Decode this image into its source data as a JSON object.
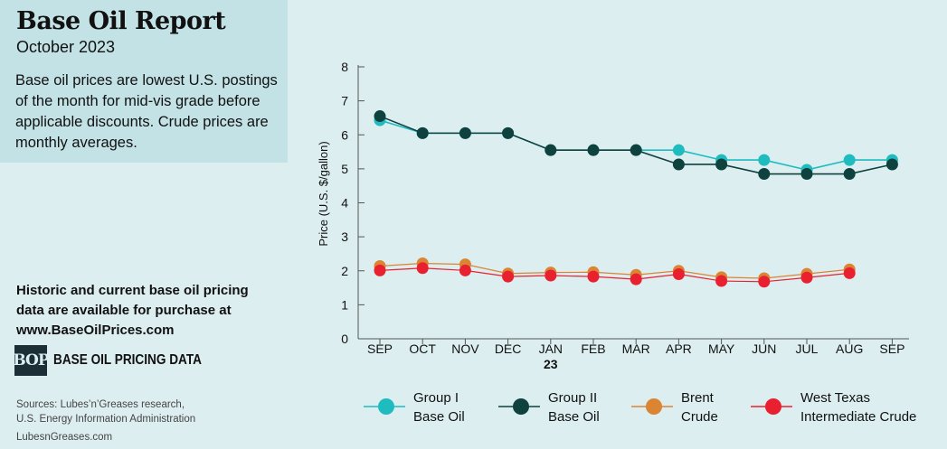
{
  "header": {
    "title": "Base Oil Report",
    "subtitle": "October 2023",
    "description": "Base oil prices are lowest U.S. postings of the month for mid-vis grade before applicable discounts. Crude prices are monthly averages."
  },
  "promo": {
    "text": "Historic and current base oil pricing data are available for purchase at",
    "url": "www.BaseOilPrices.com"
  },
  "logo": {
    "mark": "BOP",
    "text": "BASE OIL PRICING DATA"
  },
  "sources": {
    "line1": "Sources: Lubes’n’Greases research,",
    "line2": "U.S. Energy Information Administration",
    "site": "LubesnGreases.com"
  },
  "chart_data": {
    "type": "line",
    "categories": [
      "SEP",
      "OCT",
      "NOV",
      "DEC",
      "JAN",
      "FEB",
      "MAR",
      "APR",
      "MAY",
      "JUN",
      "JUL",
      "AUG",
      "SEP"
    ],
    "year_marker": {
      "category_index": 4,
      "label": "23"
    },
    "title": "",
    "xlabel": "",
    "ylabel": "Price (U.S. $/gallon)",
    "ylim": [
      0,
      8
    ],
    "yticks": [
      0,
      1,
      2,
      3,
      4,
      5,
      6,
      7,
      8
    ],
    "grid": false,
    "legend_position": "bottom",
    "series": [
      {
        "name": "Group I Base Oil",
        "legend_lines": [
          "Group I",
          "Base Oil"
        ],
        "color": "#1fbcbf",
        "values": [
          6.43,
          6.05,
          6.05,
          6.05,
          5.55,
          5.55,
          5.55,
          5.55,
          5.26,
          5.26,
          4.97,
          5.26,
          5.26
        ]
      },
      {
        "name": "Group II Base Oil",
        "legend_lines": [
          "Group II",
          "Base Oil"
        ],
        "color": "#0f413f",
        "values": [
          6.55,
          6.05,
          6.05,
          6.05,
          5.55,
          5.55,
          5.55,
          5.13,
          5.13,
          4.85,
          4.85,
          4.85,
          5.13
        ]
      },
      {
        "name": "Brent Crude",
        "legend_lines": [
          "Brent",
          "Crude"
        ],
        "color": "#db8432",
        "values": [
          2.14,
          2.22,
          2.19,
          1.92,
          1.95,
          1.96,
          1.88,
          2.0,
          1.81,
          1.78,
          1.91,
          2.04,
          null
        ]
      },
      {
        "name": "West Texas Intermediate Crude",
        "legend_lines": [
          "West Texas",
          "Intermediate Crude"
        ],
        "color": "#e8202f",
        "values": [
          2.01,
          2.08,
          2.01,
          1.83,
          1.86,
          1.83,
          1.75,
          1.9,
          1.7,
          1.68,
          1.8,
          1.93,
          null
        ]
      }
    ]
  }
}
